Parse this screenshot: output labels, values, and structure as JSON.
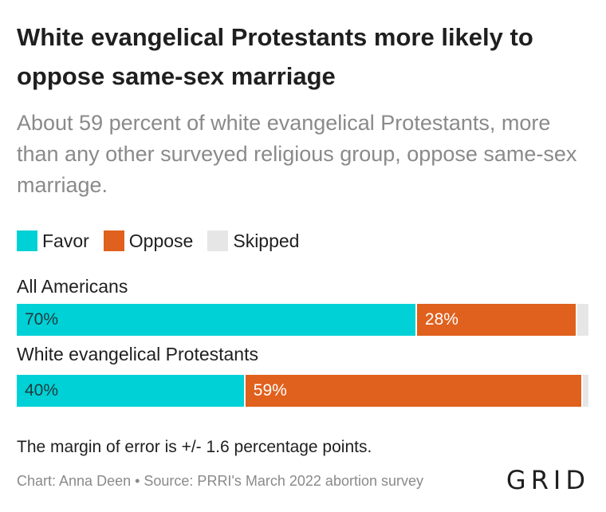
{
  "title": "White evangelical Protestants more likely to oppose same-sex marriage",
  "subtitle": "About 59 percent of white evangelical Protestants, more than any other surveyed religious group, oppose same-sex marriage.",
  "legend": [
    {
      "label": "Favor",
      "color": "#00d1d6"
    },
    {
      "label": "Oppose",
      "color": "#e0601d"
    },
    {
      "label": "Skipped",
      "color": "#e6e6e6"
    }
  ],
  "chart_data": {
    "type": "bar",
    "orientation": "horizontal",
    "stacked": true,
    "categories": [
      "All Americans",
      "White evangelical Protestants"
    ],
    "series": [
      {
        "name": "Favor",
        "values": [
          70,
          40
        ],
        "labels": [
          "70%",
          "40%"
        ],
        "color": "#00d1d6"
      },
      {
        "name": "Oppose",
        "values": [
          28,
          59
        ],
        "labels": [
          "28%",
          "59%"
        ],
        "color": "#e0601d"
      },
      {
        "name": "Skipped",
        "values": [
          2,
          1
        ],
        "labels": [
          "",
          ""
        ],
        "color": "#e6e6e6"
      }
    ]
  },
  "note": "The margin of error is +/- 1.6 percentage points.",
  "credit": "Chart: Anna Deen • Source: PRRI's March 2022 abortion survey",
  "logo": "GRID"
}
